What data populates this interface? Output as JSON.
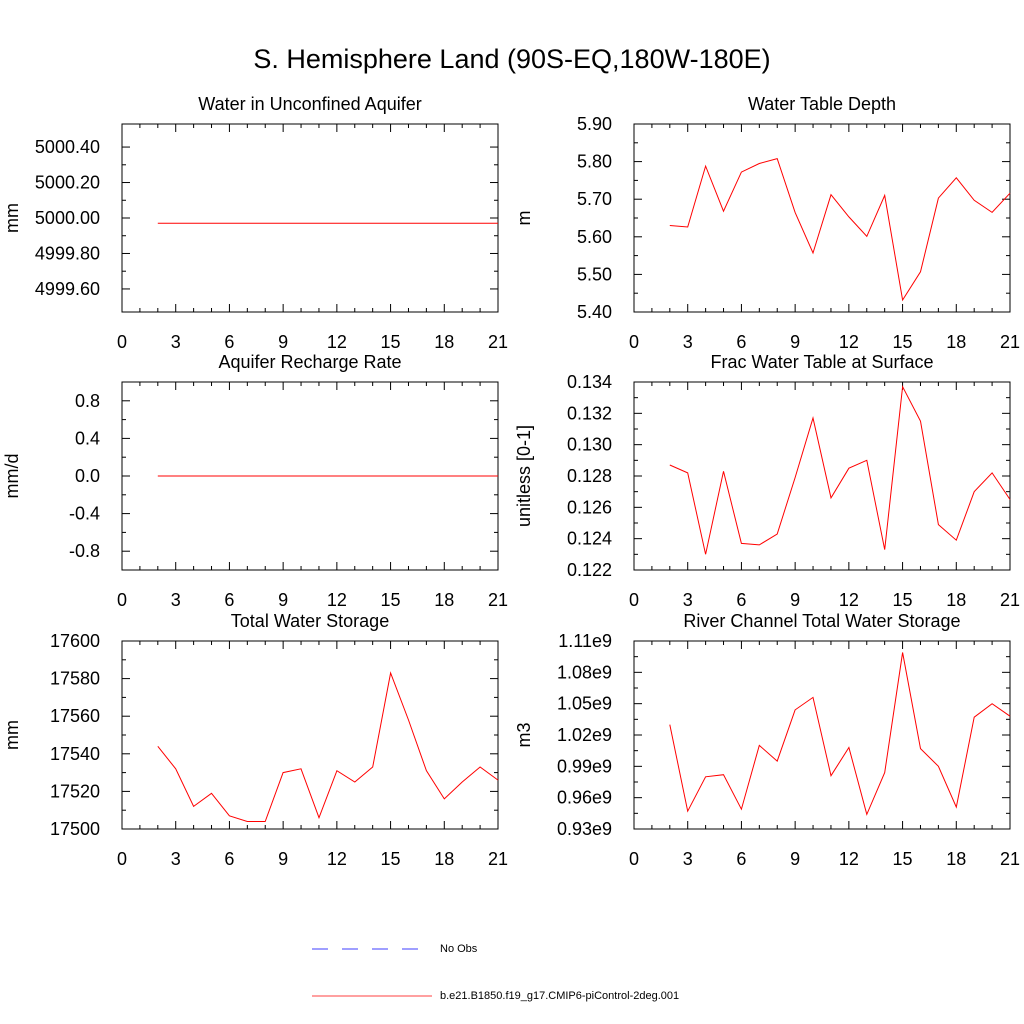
{
  "page": {
    "title": "S. Hemisphere Land (90S-EQ,180W-180E)"
  },
  "legend": {
    "obs_label": "No Obs",
    "model_label": "b.e21.B1850.f19_g17.CMIP6-piControl-2deg.001",
    "obs_color": "#0000ff",
    "model_color": "#ff0000"
  },
  "chart_data": [
    {
      "type": "line",
      "title": "Water in Unconfined Aquifer",
      "ylabel": "mm",
      "xlim": [
        0,
        21
      ],
      "xticks": [
        0,
        3,
        6,
        9,
        12,
        15,
        18,
        21
      ],
      "ylim": [
        4999.47,
        5000.53
      ],
      "yticks": [
        4999.6,
        4999.8,
        5000.0,
        5000.2,
        5000.4
      ],
      "ytick_labels": [
        "4999.60",
        "4999.80",
        "5000.00",
        "5000.20",
        "5000.40"
      ],
      "series": [
        {
          "name": "b.e21.B1850.f19_g17.CMIP6-piControl-2deg.001",
          "color": "#ff0000",
          "x": [
            2,
            3,
            4,
            5,
            6,
            7,
            8,
            9,
            10,
            11,
            12,
            13,
            14,
            15,
            16,
            17,
            18,
            19,
            20,
            21
          ],
          "y": [
            4999.97,
            4999.97,
            4999.97,
            4999.97,
            4999.97,
            4999.97,
            4999.97,
            4999.97,
            4999.97,
            4999.97,
            4999.97,
            4999.97,
            4999.97,
            4999.97,
            4999.97,
            4999.97,
            4999.97,
            4999.97,
            4999.97,
            4999.97
          ]
        }
      ]
    },
    {
      "type": "line",
      "title": "Water Table Depth",
      "ylabel": "m",
      "xlim": [
        0,
        21
      ],
      "xticks": [
        0,
        3,
        6,
        9,
        12,
        15,
        18,
        21
      ],
      "ylim": [
        5.4,
        5.9
      ],
      "yticks": [
        5.4,
        5.5,
        5.6,
        5.7,
        5.8,
        5.9
      ],
      "ytick_labels": [
        "5.40",
        "5.50",
        "5.60",
        "5.70",
        "5.80",
        "5.90"
      ],
      "series": [
        {
          "name": "b.e21.B1850.f19_g17.CMIP6-piControl-2deg.001",
          "color": "#ff0000",
          "x": [
            2,
            3,
            4,
            5,
            6,
            7,
            8,
            9,
            10,
            11,
            12,
            13,
            14,
            15,
            16,
            17,
            18,
            19,
            20,
            21
          ],
          "y": [
            5.63,
            5.626,
            5.788,
            5.668,
            5.772,
            5.795,
            5.808,
            5.665,
            5.557,
            5.712,
            5.653,
            5.601,
            5.71,
            5.432,
            5.507,
            5.703,
            5.757,
            5.697,
            5.665,
            5.716
          ]
        }
      ]
    },
    {
      "type": "line",
      "title": "Aquifer Recharge Rate",
      "ylabel": "mm/d",
      "xlim": [
        0,
        21
      ],
      "xticks": [
        0,
        3,
        6,
        9,
        12,
        15,
        18,
        21
      ],
      "ylim": [
        -1.0,
        1.0
      ],
      "yticks": [
        -0.8,
        -0.4,
        0.0,
        0.4,
        0.8
      ],
      "ytick_labels": [
        "-0.8",
        "-0.4",
        "0.0",
        "0.4",
        "0.8"
      ],
      "series": [
        {
          "name": "b.e21.B1850.f19_g17.CMIP6-piControl-2deg.001",
          "color": "#ff0000",
          "x": [
            2,
            3,
            4,
            5,
            6,
            7,
            8,
            9,
            10,
            11,
            12,
            13,
            14,
            15,
            16,
            17,
            18,
            19,
            20,
            21
          ],
          "y": [
            0,
            0,
            0,
            0,
            0,
            0,
            0,
            0,
            0,
            0,
            0,
            0,
            0,
            0,
            0,
            0,
            0,
            0,
            0,
            0
          ]
        }
      ]
    },
    {
      "type": "line",
      "title": "Frac Water Table at Surface",
      "ylabel": "unitless [0-1]",
      "xlim": [
        0,
        21
      ],
      "xticks": [
        0,
        3,
        6,
        9,
        12,
        15,
        18,
        21
      ],
      "ylim": [
        0.122,
        0.134
      ],
      "yticks": [
        0.122,
        0.124,
        0.126,
        0.128,
        0.13,
        0.132,
        0.134
      ],
      "ytick_labels": [
        "0.122",
        "0.124",
        "0.126",
        "0.128",
        "0.130",
        "0.132",
        "0.134"
      ],
      "series": [
        {
          "name": "b.e21.B1850.f19_g17.CMIP6-piControl-2deg.001",
          "color": "#ff0000",
          "x": [
            2,
            3,
            4,
            5,
            6,
            7,
            8,
            9,
            10,
            11,
            12,
            13,
            14,
            15,
            16,
            17,
            18,
            19,
            20,
            21
          ],
          "y": [
            0.1287,
            0.1282,
            0.123,
            0.1283,
            0.1237,
            0.1236,
            0.1243,
            0.1279,
            0.1317,
            0.1266,
            0.1285,
            0.129,
            0.1233,
            0.1337,
            0.1315,
            0.1249,
            0.1239,
            0.127,
            0.1282,
            0.1265
          ]
        }
      ]
    },
    {
      "type": "line",
      "title": "Total Water Storage",
      "ylabel": "mm",
      "xlim": [
        0,
        21
      ],
      "xticks": [
        0,
        3,
        6,
        9,
        12,
        15,
        18,
        21
      ],
      "ylim": [
        17500,
        17600
      ],
      "yticks": [
        17500,
        17520,
        17540,
        17560,
        17580,
        17600
      ],
      "ytick_labels": [
        "17500",
        "17520",
        "17540",
        "17560",
        "17580",
        "17600"
      ],
      "series": [
        {
          "name": "b.e21.B1850.f19_g17.CMIP6-piControl-2deg.001",
          "color": "#ff0000",
          "x": [
            2,
            3,
            4,
            5,
            6,
            7,
            8,
            9,
            10,
            11,
            12,
            13,
            14,
            15,
            16,
            17,
            18,
            19,
            20,
            21
          ],
          "y": [
            17544,
            17532,
            17512,
            17519,
            17507,
            17504,
            17504,
            17530,
            17532,
            17506,
            17531,
            17525,
            17533,
            17583,
            17558,
            17531,
            17516,
            17525,
            17533,
            17526
          ]
        }
      ]
    },
    {
      "type": "line",
      "title": "River Channel Total Water Storage",
      "ylabel": "m3",
      "xlim": [
        0,
        21
      ],
      "xticks": [
        0,
        3,
        6,
        9,
        12,
        15,
        18,
        21
      ],
      "ylim": [
        0.93,
        1.11
      ],
      "yticks": [
        0.93,
        0.96,
        0.99,
        1.02,
        1.05,
        1.08,
        1.11
      ],
      "ytick_labels": [
        "0.93e9",
        "0.96e9",
        "0.99e9",
        "1.02e9",
        "1.05e9",
        "1.08e9",
        "1.11e9"
      ],
      "series": [
        {
          "name": "b.e21.B1850.f19_g17.CMIP6-piControl-2deg.001",
          "color": "#ff0000",
          "x": [
            2,
            3,
            4,
            5,
            6,
            7,
            8,
            9,
            10,
            11,
            12,
            13,
            14,
            15,
            16,
            17,
            18,
            19,
            20,
            21
          ],
          "y": [
            1.03,
            0.947,
            0.98,
            0.982,
            0.949,
            1.01,
            0.995,
            1.044,
            1.056,
            0.981,
            1.008,
            0.944,
            0.984,
            1.099,
            1.007,
            0.99,
            0.951,
            1.037,
            1.05,
            1.038
          ]
        }
      ]
    }
  ]
}
